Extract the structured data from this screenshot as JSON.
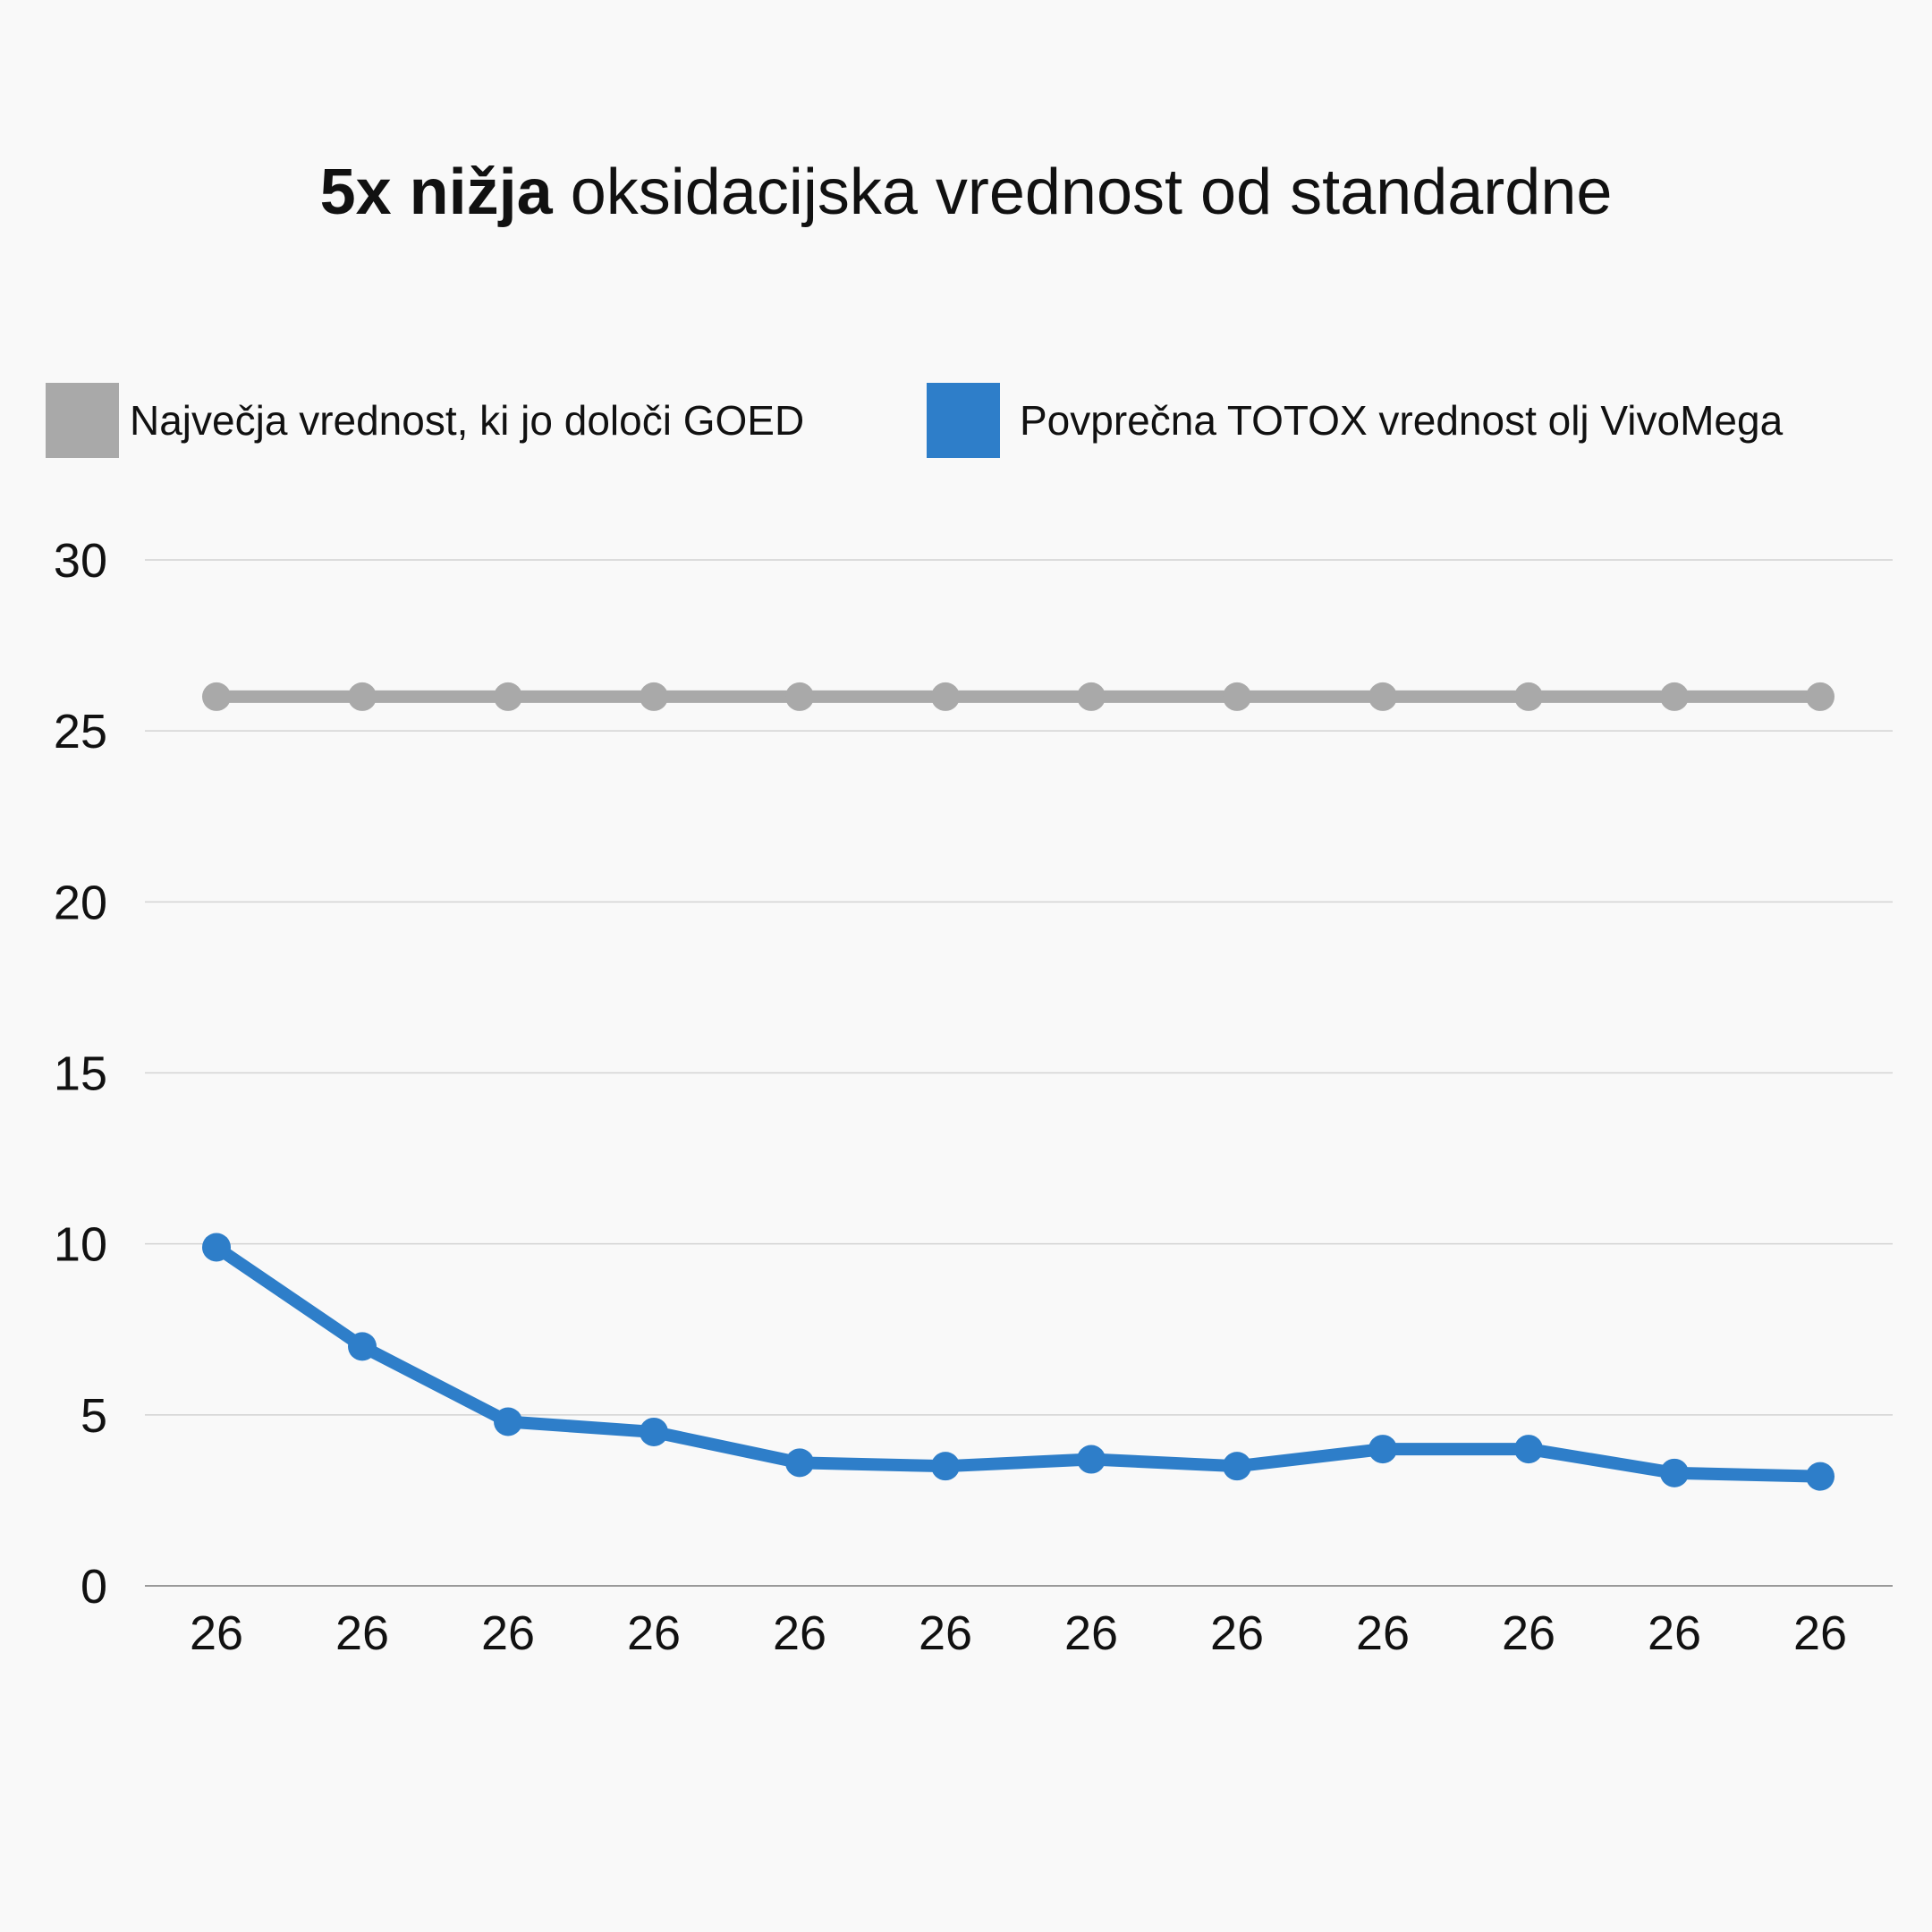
{
  "title": {
    "bold": "5x nižja",
    "rest": " oksidacijska vrednost od standardne"
  },
  "legend": [
    {
      "label": "Največja vrednost, ki jo določi GOED",
      "color": "#a9a9a9"
    },
    {
      "label": "Povprečna TOTOX vrednost olj VivoMega",
      "color": "#2e7ec9"
    }
  ],
  "chart_data": {
    "type": "line",
    "categories": [
      "26",
      "26",
      "26",
      "26",
      "26",
      "26",
      "26",
      "26",
      "26",
      "26",
      "26",
      "26"
    ],
    "series": [
      {
        "name": "Največja vrednost, ki jo določi GOED",
        "color": "#a9a9a9",
        "values": [
          26,
          26,
          26,
          26,
          26,
          26,
          26,
          26,
          26,
          26,
          26,
          26
        ]
      },
      {
        "name": "Povprečna TOTOX vrednost olj VivoMega",
        "color": "#2e7ec9",
        "values": [
          9.9,
          7.0,
          4.8,
          4.5,
          3.6,
          3.5,
          3.7,
          3.5,
          4.0,
          4.0,
          3.3,
          3.2
        ]
      }
    ],
    "yticks": [
      0,
      5,
      10,
      15,
      20,
      25,
      30
    ],
    "ylim": [
      0,
      30
    ],
    "grid": true,
    "legend_position": "top",
    "title": "5x nižja oksidacijska vrednost od standardne",
    "xlabel": "",
    "ylabel": ""
  }
}
